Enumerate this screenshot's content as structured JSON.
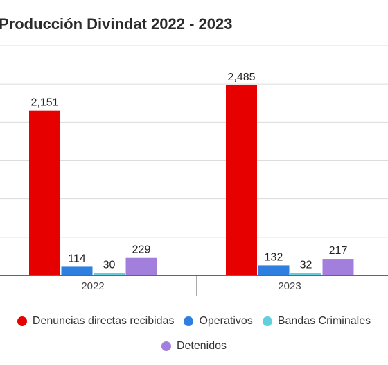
{
  "chart_data": {
    "type": "bar",
    "title": "Producción Divindat 2022 - 2023",
    "categories": [
      "2022",
      "2023"
    ],
    "series": [
      {
        "name": "Denuncias directas recibidas",
        "color": "#e60000",
        "values": [
          2151,
          2485
        ]
      },
      {
        "name": "Operativos",
        "color": "#2e7fe0",
        "values": [
          114,
          132
        ]
      },
      {
        "name": "Bandas Criminales",
        "color": "#5fd0dc",
        "values": [
          30,
          32
        ]
      },
      {
        "name": "Detenidos",
        "color": "#a37fdd",
        "values": [
          229,
          217
        ]
      }
    ],
    "value_labels": [
      [
        "2,151",
        "2,485"
      ],
      [
        "114",
        "132"
      ],
      [
        "30",
        "32"
      ],
      [
        "229",
        "217"
      ]
    ],
    "ylim": [
      0,
      3000
    ],
    "grid": true,
    "legend_position": "bottom"
  }
}
